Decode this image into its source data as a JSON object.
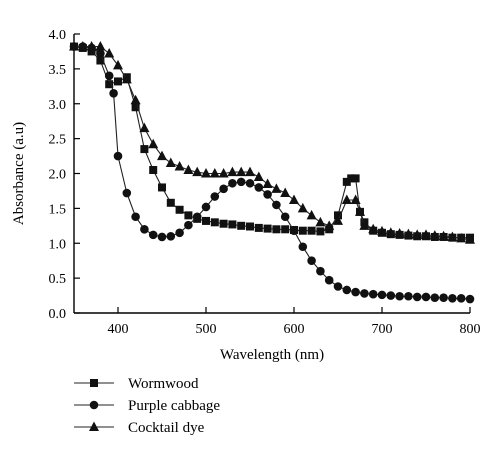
{
  "chart_data": {
    "type": "line",
    "title": "",
    "xlabel": "Wavelength (nm)",
    "ylabel": "Absorbance (a.u)",
    "xlim": [
      350,
      800
    ],
    "ylim": [
      0.0,
      4.0
    ],
    "x_ticks": [
      "400",
      "500",
      "600",
      "700",
      "800"
    ],
    "y_ticks": [
      "0.0",
      "0.5",
      "1.0",
      "1.5",
      "2.0",
      "2.5",
      "3.0",
      "3.5",
      "4.0"
    ],
    "grid": false,
    "legend_position": "below",
    "series": [
      {
        "name": "Wormwood",
        "marker": "square",
        "x": [
          350,
          360,
          370,
          380,
          390,
          400,
          410,
          420,
          430,
          440,
          450,
          460,
          470,
          480,
          490,
          500,
          510,
          520,
          530,
          540,
          550,
          560,
          570,
          580,
          590,
          600,
          610,
          620,
          630,
          640,
          650,
          660,
          665,
          670,
          675,
          680,
          690,
          700,
          710,
          720,
          730,
          740,
          750,
          760,
          770,
          780,
          790,
          800
        ],
        "y": [
          3.82,
          3.8,
          3.75,
          3.62,
          3.28,
          3.32,
          3.38,
          2.95,
          2.35,
          2.05,
          1.8,
          1.58,
          1.48,
          1.4,
          1.35,
          1.32,
          1.3,
          1.28,
          1.27,
          1.25,
          1.24,
          1.22,
          1.21,
          1.2,
          1.2,
          1.19,
          1.18,
          1.18,
          1.17,
          1.2,
          1.4,
          1.88,
          1.93,
          1.93,
          1.45,
          1.3,
          1.18,
          1.15,
          1.13,
          1.12,
          1.11,
          1.1,
          1.1,
          1.09,
          1.09,
          1.08,
          1.08,
          1.08
        ]
      },
      {
        "name": "Purple cabbage",
        "marker": "circle",
        "x": [
          350,
          360,
          370,
          380,
          390,
          395,
          400,
          410,
          420,
          430,
          440,
          450,
          460,
          470,
          480,
          490,
          500,
          510,
          520,
          530,
          540,
          550,
          560,
          570,
          580,
          590,
          600,
          610,
          620,
          630,
          640,
          650,
          660,
          670,
          680,
          690,
          700,
          710,
          720,
          730,
          740,
          750,
          760,
          770,
          780,
          790,
          800
        ],
        "y": [
          3.82,
          3.82,
          3.8,
          3.72,
          3.4,
          3.15,
          2.25,
          1.72,
          1.38,
          1.2,
          1.12,
          1.09,
          1.1,
          1.15,
          1.26,
          1.38,
          1.52,
          1.67,
          1.78,
          1.86,
          1.88,
          1.86,
          1.8,
          1.7,
          1.55,
          1.38,
          1.18,
          0.95,
          0.75,
          0.6,
          0.47,
          0.38,
          0.33,
          0.3,
          0.28,
          0.27,
          0.26,
          0.25,
          0.24,
          0.24,
          0.23,
          0.23,
          0.22,
          0.22,
          0.21,
          0.21,
          0.2
        ]
      },
      {
        "name": "Cocktail dye",
        "marker": "triangle",
        "x": [
          350,
          360,
          370,
          380,
          390,
          400,
          410,
          420,
          430,
          440,
          450,
          460,
          470,
          480,
          490,
          500,
          510,
          520,
          530,
          540,
          550,
          560,
          570,
          580,
          590,
          600,
          610,
          620,
          630,
          640,
          650,
          660,
          670,
          675,
          680,
          690,
          700,
          710,
          720,
          730,
          740,
          750,
          760,
          770,
          780,
          790,
          800
        ],
        "y": [
          3.82,
          3.82,
          3.82,
          3.82,
          3.72,
          3.55,
          3.35,
          3.05,
          2.65,
          2.42,
          2.25,
          2.15,
          2.1,
          2.05,
          2.02,
          2.0,
          2.0,
          2.0,
          2.02,
          2.02,
          2.02,
          1.95,
          1.85,
          1.78,
          1.72,
          1.62,
          1.5,
          1.4,
          1.3,
          1.25,
          1.32,
          1.62,
          1.62,
          1.45,
          1.25,
          1.2,
          1.17,
          1.15,
          1.14,
          1.13,
          1.12,
          1.12,
          1.11,
          1.1,
          1.09,
          1.07,
          1.05
        ]
      }
    ]
  }
}
